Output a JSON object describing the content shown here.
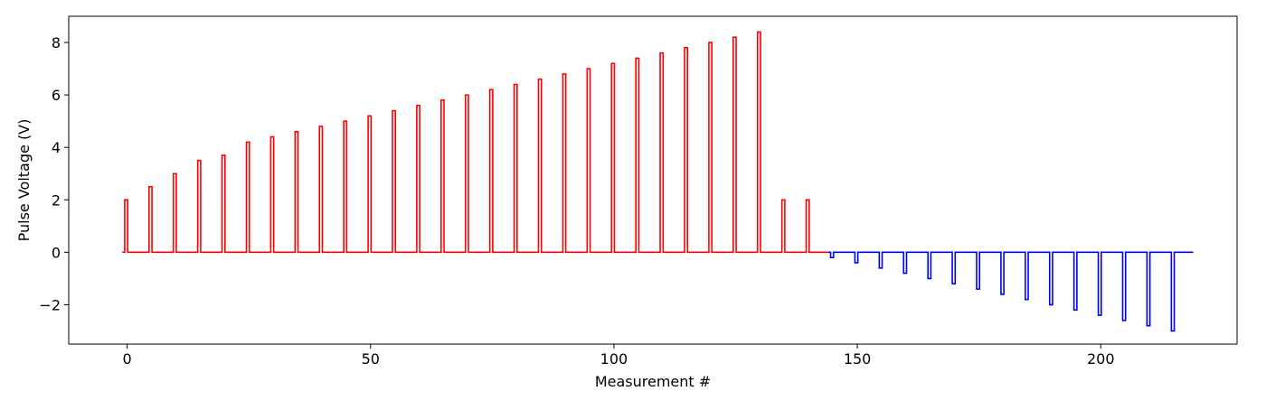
{
  "chart_data": {
    "type": "line",
    "title": "",
    "xlabel": "Measurement #",
    "ylabel": "Pulse Voltage (V)",
    "xlim": [
      -12,
      228
    ],
    "ylim": [
      -3.5,
      9.0
    ],
    "x_ticks": [
      0,
      50,
      100,
      150,
      200
    ],
    "x_tick_labels": [
      "0",
      "50",
      "100",
      "150",
      "200"
    ],
    "y_ticks": [
      -2,
      0,
      2,
      4,
      6,
      8
    ],
    "y_tick_labels": [
      "−2",
      "0",
      "2",
      "4",
      "6",
      "8"
    ],
    "grid": false,
    "legend": "none",
    "pulse_width": 0.6,
    "baseline": 0,
    "series": [
      {
        "color": "#ff0000",
        "x_start": -1,
        "x_end": 144,
        "pulse_x": [
          -0.5,
          4.5,
          9.5,
          14.5,
          19.5,
          24.5,
          29.5,
          34.5,
          39.5,
          44.5,
          49.5,
          54.5,
          59.5,
          64.5,
          69.5,
          74.5,
          79.5,
          84.5,
          89.5,
          94.5,
          99.5,
          104.5,
          109.5,
          114.5,
          119.5,
          124.5,
          129.5,
          134.5,
          139.5
        ],
        "pulse_values": [
          2.0,
          2.5,
          3.0,
          3.5,
          3.7,
          4.2,
          4.4,
          4.6,
          4.8,
          5.0,
          5.2,
          5.4,
          5.6,
          5.8,
          6.0,
          6.2,
          6.4,
          6.6,
          6.8,
          7.0,
          7.2,
          7.4,
          7.6,
          7.8,
          8.0,
          8.2,
          8.4,
          2.0,
          2.0
        ]
      },
      {
        "color": "#0000ff",
        "x_start": 144,
        "x_end": 219,
        "pulse_x": [
          144.5,
          149.5,
          154.5,
          159.5,
          164.5,
          169.5,
          174.5,
          179.5,
          184.5,
          189.5,
          194.5,
          199.5,
          204.5,
          209.5,
          214.5
        ],
        "pulse_values": [
          -0.2,
          -0.4,
          -0.6,
          -0.8,
          -1.0,
          -1.2,
          -1.4,
          -1.6,
          -1.8,
          -2.0,
          -2.2,
          -2.4,
          -2.6,
          -2.8,
          -3.0
        ]
      }
    ]
  }
}
